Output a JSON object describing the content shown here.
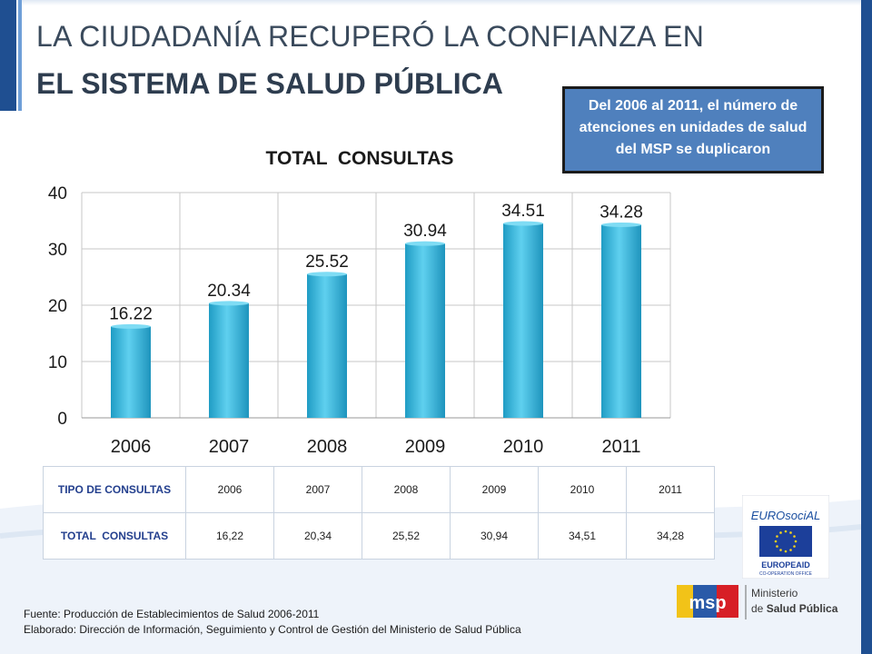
{
  "slide": {
    "title_line1": "LA CIUDADANÍA RECUPERÓ LA CONFIANZA EN",
    "title_line2": "EL SISTEMA DE SALUD PÚBLICA",
    "callout": "Del 2006 al 2011, el número de atenciones en unidades de salud del MSP se duplicaron"
  },
  "chart_data": {
    "type": "bar",
    "title": "TOTAL  CONSULTAS",
    "categories": [
      "2006",
      "2007",
      "2008",
      "2009",
      "2010",
      "2011"
    ],
    "values": [
      16.22,
      20.34,
      25.52,
      30.94,
      34.51,
      34.28
    ],
    "data_labels": [
      "16.22",
      "20.34",
      "25.52",
      "30.94",
      "34.51",
      "34.28"
    ],
    "ylim": [
      0,
      40
    ],
    "yticks": [
      0,
      10,
      20,
      30,
      40
    ],
    "grid": true,
    "bar_color": "#33b5d9"
  },
  "table": {
    "header_label": "TIPO DE CONSULTAS",
    "years": [
      "2006",
      "2007",
      "2008",
      "2009",
      "2010",
      "2011"
    ],
    "row_label": "TOTAL  CONSULTAS",
    "values": [
      "16,22",
      "20,34",
      "25,52",
      "30,94",
      "34,51",
      "34,28"
    ]
  },
  "logos": {
    "eurosocial_text": "EUROsociAL",
    "europeaid_text": "EUROPEAID",
    "europeaid_sub": "CO-OPERATION OFFICE",
    "msp_text": "msp",
    "ministerio_line1": "Ministerio",
    "ministerio_prefix": "de ",
    "ministerio_line2": "Salud Pública"
  },
  "footer": {
    "source": "Fuente: Producción de Establecimientos de Salud 2006-2011",
    "prepared": "Elaborado: Dirección de Información, Seguimiento y Control de Gestión del Ministerio de Salud Pública"
  }
}
